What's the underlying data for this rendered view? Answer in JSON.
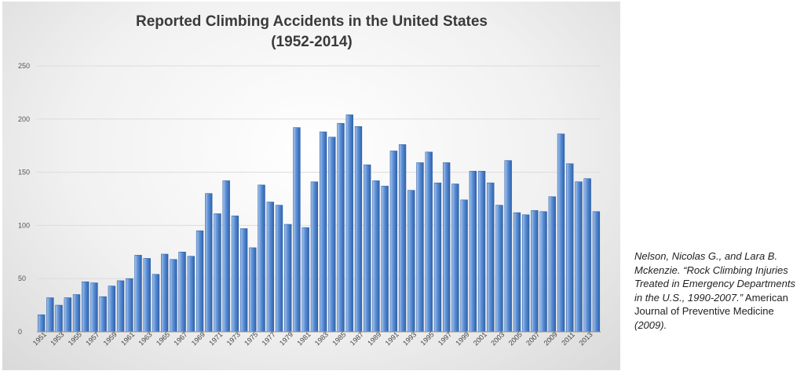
{
  "chart_data": {
    "type": "bar",
    "title": [
      "Reported Climbing Accidents in the United States",
      "(1952-2014)"
    ],
    "xlabel": "",
    "ylabel": "",
    "ylim": [
      0,
      250
    ],
    "yticks": [
      0,
      50,
      100,
      150,
      200,
      250
    ],
    "grid": true,
    "legend": "none",
    "colors": {
      "bar_light": "#a9c6ec",
      "bar_mid": "#5b8fd6",
      "bar_dark": "#2f62ab",
      "grid": "#dcdcdc",
      "axis": "#8c8c8c"
    },
    "xtick_labels": [
      "1951",
      "1953",
      "1955",
      "1957",
      "1959",
      "1961",
      "1963",
      "1965",
      "1967",
      "1969",
      "1971",
      "1973",
      "1975",
      "1977",
      "1979",
      "1981",
      "1983",
      "1985",
      "1987",
      "1989",
      "1991",
      "1993",
      "1995",
      "1997",
      "1999",
      "2001",
      "2003",
      "2005",
      "2007",
      "2009",
      "2011",
      "2013"
    ],
    "categories": [
      "1951",
      "1952",
      "1953",
      "1954",
      "1955",
      "1956",
      "1957",
      "1958",
      "1959",
      "1960",
      "1961",
      "1962",
      "1963",
      "1964",
      "1965",
      "1966",
      "1967",
      "1968",
      "1969",
      "1970",
      "1971",
      "1972",
      "1973",
      "1974",
      "1975",
      "1976",
      "1977",
      "1978",
      "1979",
      "1980",
      "1981",
      "1982",
      "1983",
      "1984",
      "1985",
      "1986",
      "1987",
      "1988",
      "1989",
      "1990",
      "1991",
      "1992",
      "1993",
      "1994",
      "1995",
      "1996",
      "1997",
      "1998",
      "1999",
      "2000",
      "2001",
      "2002",
      "2003",
      "2004",
      "2005",
      "2006",
      "2007",
      "2008",
      "2009",
      "2010",
      "2011",
      "2012",
      "2013",
      "2014"
    ],
    "values": [
      16,
      32,
      25,
      32,
      35,
      47,
      46,
      33,
      43,
      48,
      50,
      72,
      69,
      54,
      73,
      68,
      75,
      71,
      95,
      130,
      111,
      142,
      109,
      97,
      79,
      138,
      122,
      119,
      101,
      192,
      98,
      141,
      188,
      183,
      196,
      204,
      193,
      157,
      142,
      137,
      170,
      176,
      133,
      159,
      169,
      140,
      159,
      139,
      124,
      151,
      151,
      140,
      119,
      161,
      112,
      110,
      114,
      113,
      127,
      186,
      158,
      141,
      144,
      113
    ]
  },
  "citation": {
    "part1": "Nelson, Nicolas G., and Lara B. Mckenzie. “Rock Climbing Injuries Treated in Emergency Departments in the U.S., 1990-2007.”",
    "part2": " American Journal of Preventive Medicine ",
    "part3": "(2009)."
  }
}
